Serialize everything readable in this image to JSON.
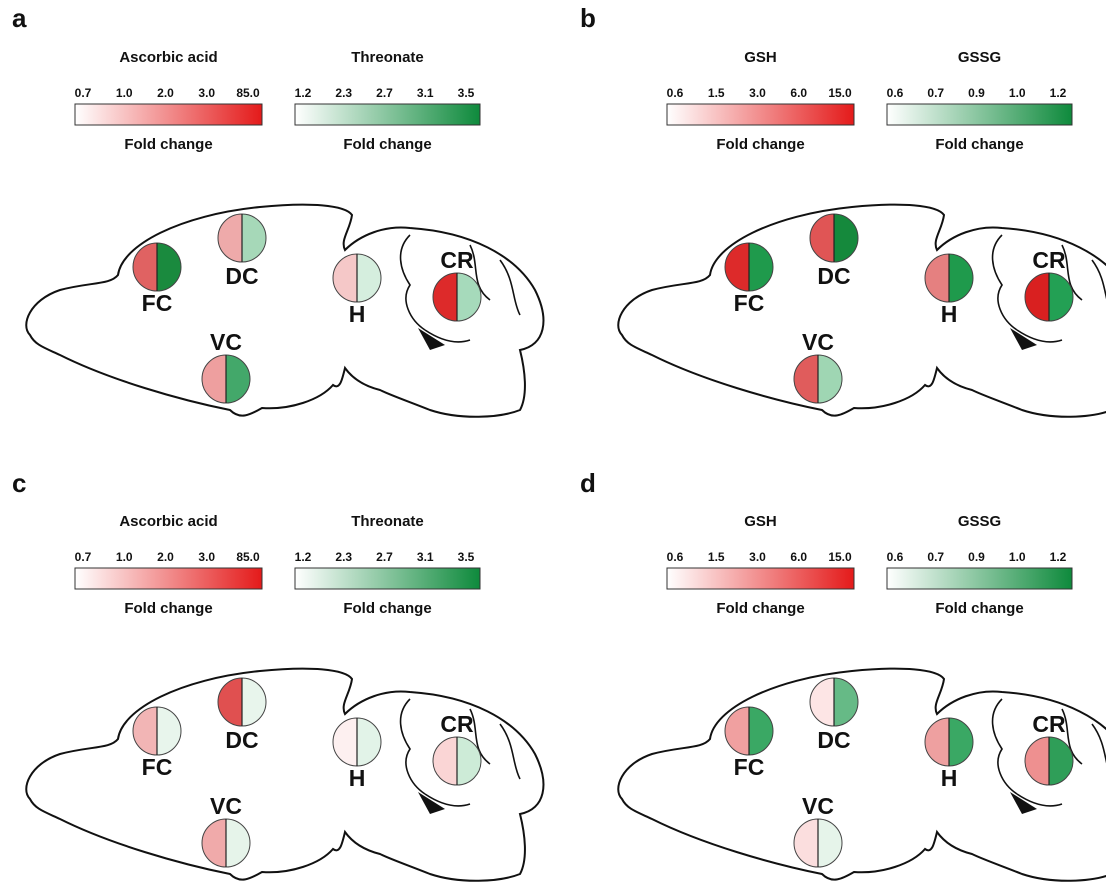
{
  "panels": [
    {
      "letter": "a",
      "legends": [
        {
          "title": "Ascorbic acid",
          "ticks": [
            "0.7",
            "1.0",
            "2.0",
            "3.0",
            "85.0"
          ],
          "label": "Fold change",
          "color": "#e41a1a"
        },
        {
          "title": "Threonate",
          "ticks": [
            "1.2",
            "2.3",
            "2.7",
            "3.1",
            "3.5"
          ],
          "label": "Fold change",
          "color": "#0e8a3c"
        }
      ],
      "regions": [
        {
          "label": "FC",
          "left": "#e06262",
          "right": "#1a8a3e"
        },
        {
          "label": "DC",
          "left": "#eeaaaa",
          "right": "#a6d8b8"
        },
        {
          "label": "H",
          "left": "#f5c8c8",
          "right": "#d5eede"
        },
        {
          "label": "CR",
          "left": "#dd2a2a",
          "right": "#a6dabb"
        },
        {
          "label": "VC",
          "left": "#ee9f9f",
          "right": "#43a86a"
        }
      ]
    },
    {
      "letter": "b",
      "legends": [
        {
          "title": "GSH",
          "ticks": [
            "0.6",
            "1.5",
            "3.0",
            "6.0",
            "15.0"
          ],
          "label": "Fold change",
          "color": "#e41a1a"
        },
        {
          "title": "GSSG",
          "ticks": [
            "0.6",
            "0.7",
            "0.9",
            "1.0",
            "1.2"
          ],
          "label": "Fold change",
          "color": "#0e8a3c"
        }
      ],
      "regions": [
        {
          "label": "FC",
          "left": "#dd2a2a",
          "right": "#1f9a4c"
        },
        {
          "label": "DC",
          "left": "#e05555",
          "right": "#15893c"
        },
        {
          "label": "H",
          "left": "#e58080",
          "right": "#1f9a4c"
        },
        {
          "label": "CR",
          "left": "#d92020",
          "right": "#23a054"
        },
        {
          "label": "VC",
          "left": "#e05c5c",
          "right": "#9fd6b3"
        }
      ]
    },
    {
      "letter": "c",
      "legends": [
        {
          "title": "Ascorbic acid",
          "ticks": [
            "0.7",
            "1.0",
            "2.0",
            "3.0",
            "85.0"
          ],
          "label": "Fold change",
          "color": "#e41a1a"
        },
        {
          "title": "Threonate",
          "ticks": [
            "1.2",
            "2.3",
            "2.7",
            "3.1",
            "3.5"
          ],
          "label": "Fold change",
          "color": "#0e8a3c"
        }
      ],
      "regions": [
        {
          "label": "FC",
          "left": "#f2b5b5",
          "right": "#e8f5ec"
        },
        {
          "label": "DC",
          "left": "#e05050",
          "right": "#e8f5ec"
        },
        {
          "label": "H",
          "left": "#fdf0f0",
          "right": "#e2f3e8"
        },
        {
          "label": "CR",
          "left": "#fad5d5",
          "right": "#cdebd7"
        },
        {
          "label": "VC",
          "left": "#f0aaaa",
          "right": "#e6f4ea"
        }
      ]
    },
    {
      "letter": "d",
      "legends": [
        {
          "title": "GSH",
          "ticks": [
            "0.6",
            "1.5",
            "3.0",
            "6.0",
            "15.0"
          ],
          "label": "Fold change",
          "color": "#e41a1a"
        },
        {
          "title": "GSSG",
          "ticks": [
            "0.6",
            "0.7",
            "0.9",
            "1.0",
            "1.2"
          ],
          "label": "Fold change",
          "color": "#0e8a3c"
        }
      ],
      "regions": [
        {
          "label": "FC",
          "left": "#f0a0a0",
          "right": "#3aa864"
        },
        {
          "label": "DC",
          "left": "#fde5e5",
          "right": "#66ba86"
        },
        {
          "label": "H",
          "left": "#eea0a0",
          "right": "#3aa864"
        },
        {
          "label": "CR",
          "left": "#ee9090",
          "right": "#2f9e58"
        },
        {
          "label": "VC",
          "left": "#fbdede",
          "right": "#e6f4ea"
        }
      ]
    }
  ]
}
